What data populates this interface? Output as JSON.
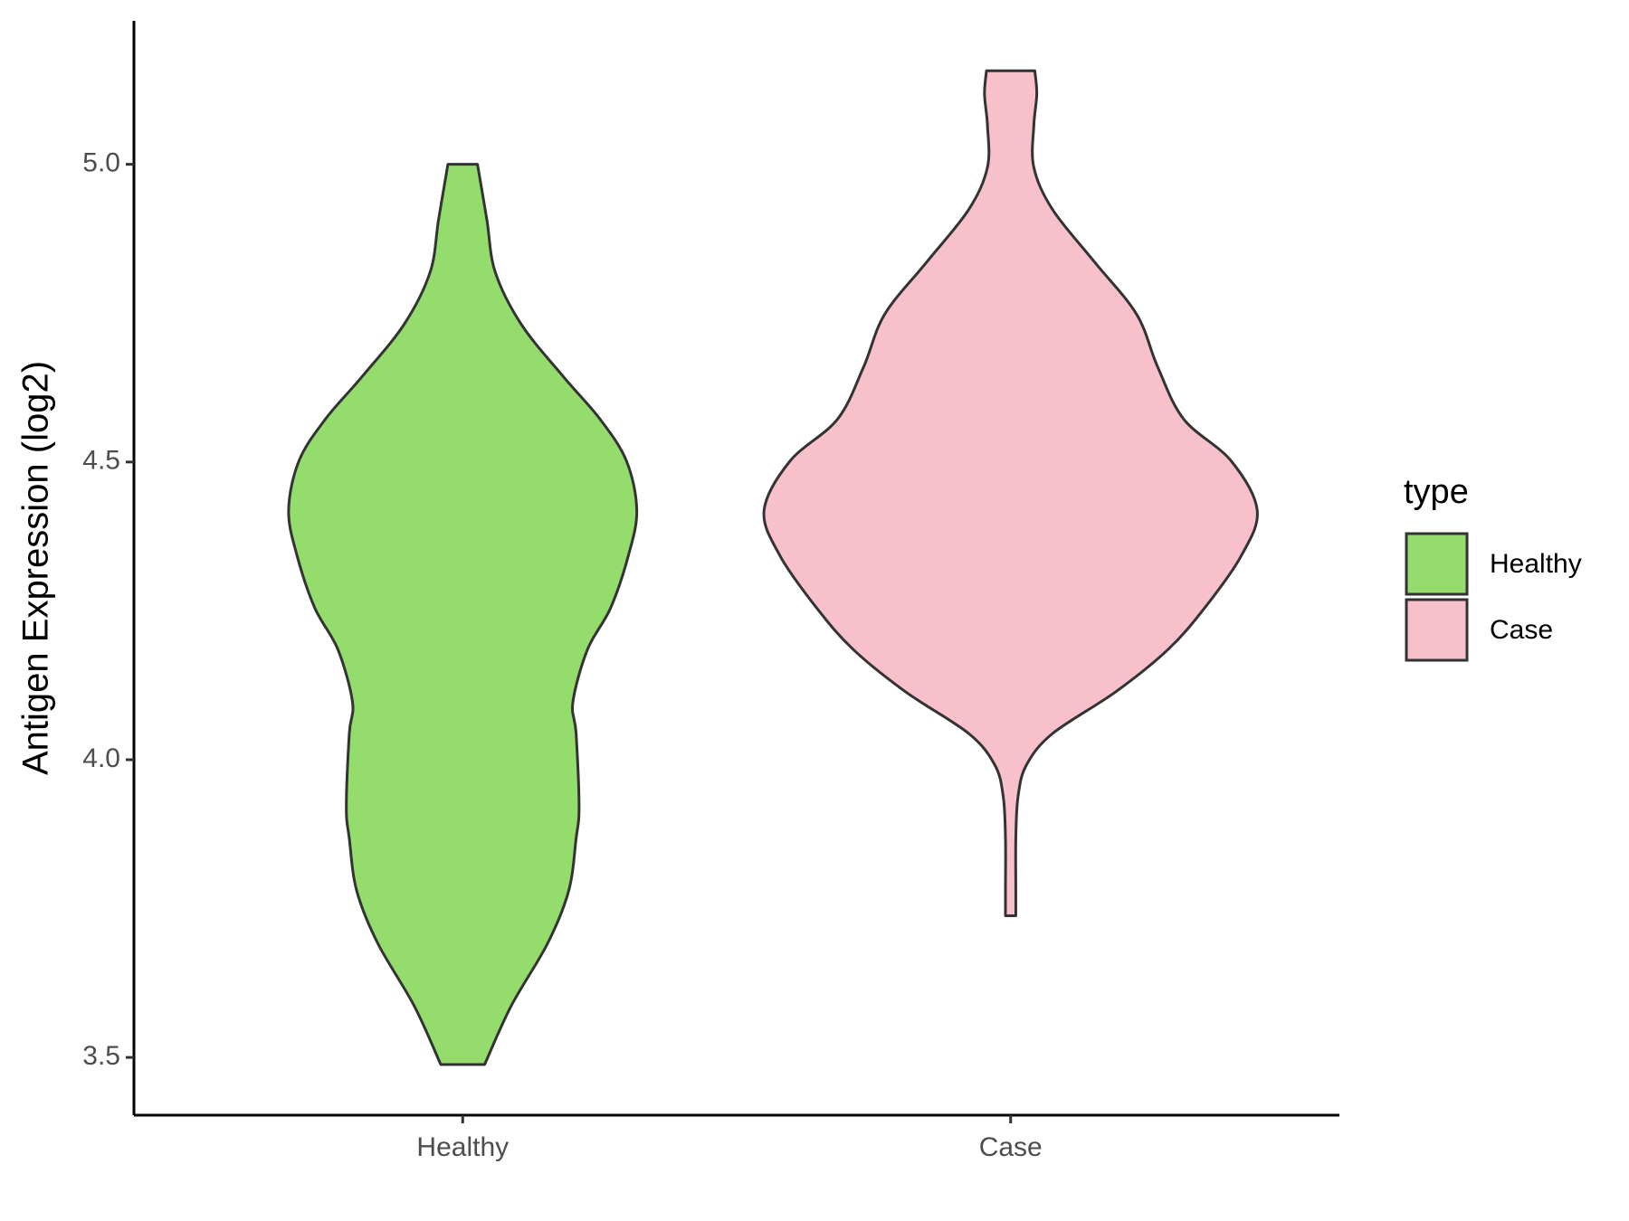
{
  "chart_data": {
    "type": "violin",
    "y_label": "Antigen Expression (log2)",
    "categories": [
      "Healthy",
      "Case"
    ],
    "ylim": [
      3.403,
      5.241
    ],
    "yticks": [
      {
        "value": 3.5,
        "label": "3.5"
      },
      {
        "value": 4,
        "label": "4.0"
      },
      {
        "value": 4.5,
        "label": "4.5"
      },
      {
        "value": 5,
        "label": "5.0"
      }
    ],
    "legend_title": "type",
    "legend_position": "right",
    "grid": false,
    "series": [
      {
        "name": "Healthy",
        "color": "#94dc6b",
        "y": [
          3.488,
          3.586,
          3.692,
          3.78,
          3.868,
          3.921,
          4.044,
          4.097,
          4.185,
          4.255,
          4.343,
          4.419,
          4.502,
          4.572,
          4.643,
          4.731,
          4.819,
          4.907,
          5.0
        ],
        "density": [
          0.089,
          0.196,
          0.345,
          0.43,
          0.46,
          0.472,
          0.46,
          0.447,
          0.506,
          0.6,
          0.672,
          0.706,
          0.664,
          0.557,
          0.409,
          0.238,
          0.132,
          0.098,
          0.06
        ]
      },
      {
        "name": "Case",
        "color": "#f7c0cb",
        "y": [
          3.738,
          3.78,
          3.868,
          3.938,
          3.991,
          4.044,
          4.114,
          4.185,
          4.255,
          4.343,
          4.419,
          4.502,
          4.572,
          4.66,
          4.748,
          4.836,
          4.924,
          4.995,
          5.065,
          5.118,
          5.157
        ],
        "density": [
          0.021,
          0.021,
          0.021,
          0.03,
          0.064,
          0.17,
          0.426,
          0.638,
          0.787,
          0.936,
          1,
          0.894,
          0.702,
          0.596,
          0.511,
          0.34,
          0.17,
          0.094,
          0.094,
          0.106,
          0.098
        ]
      }
    ]
  }
}
